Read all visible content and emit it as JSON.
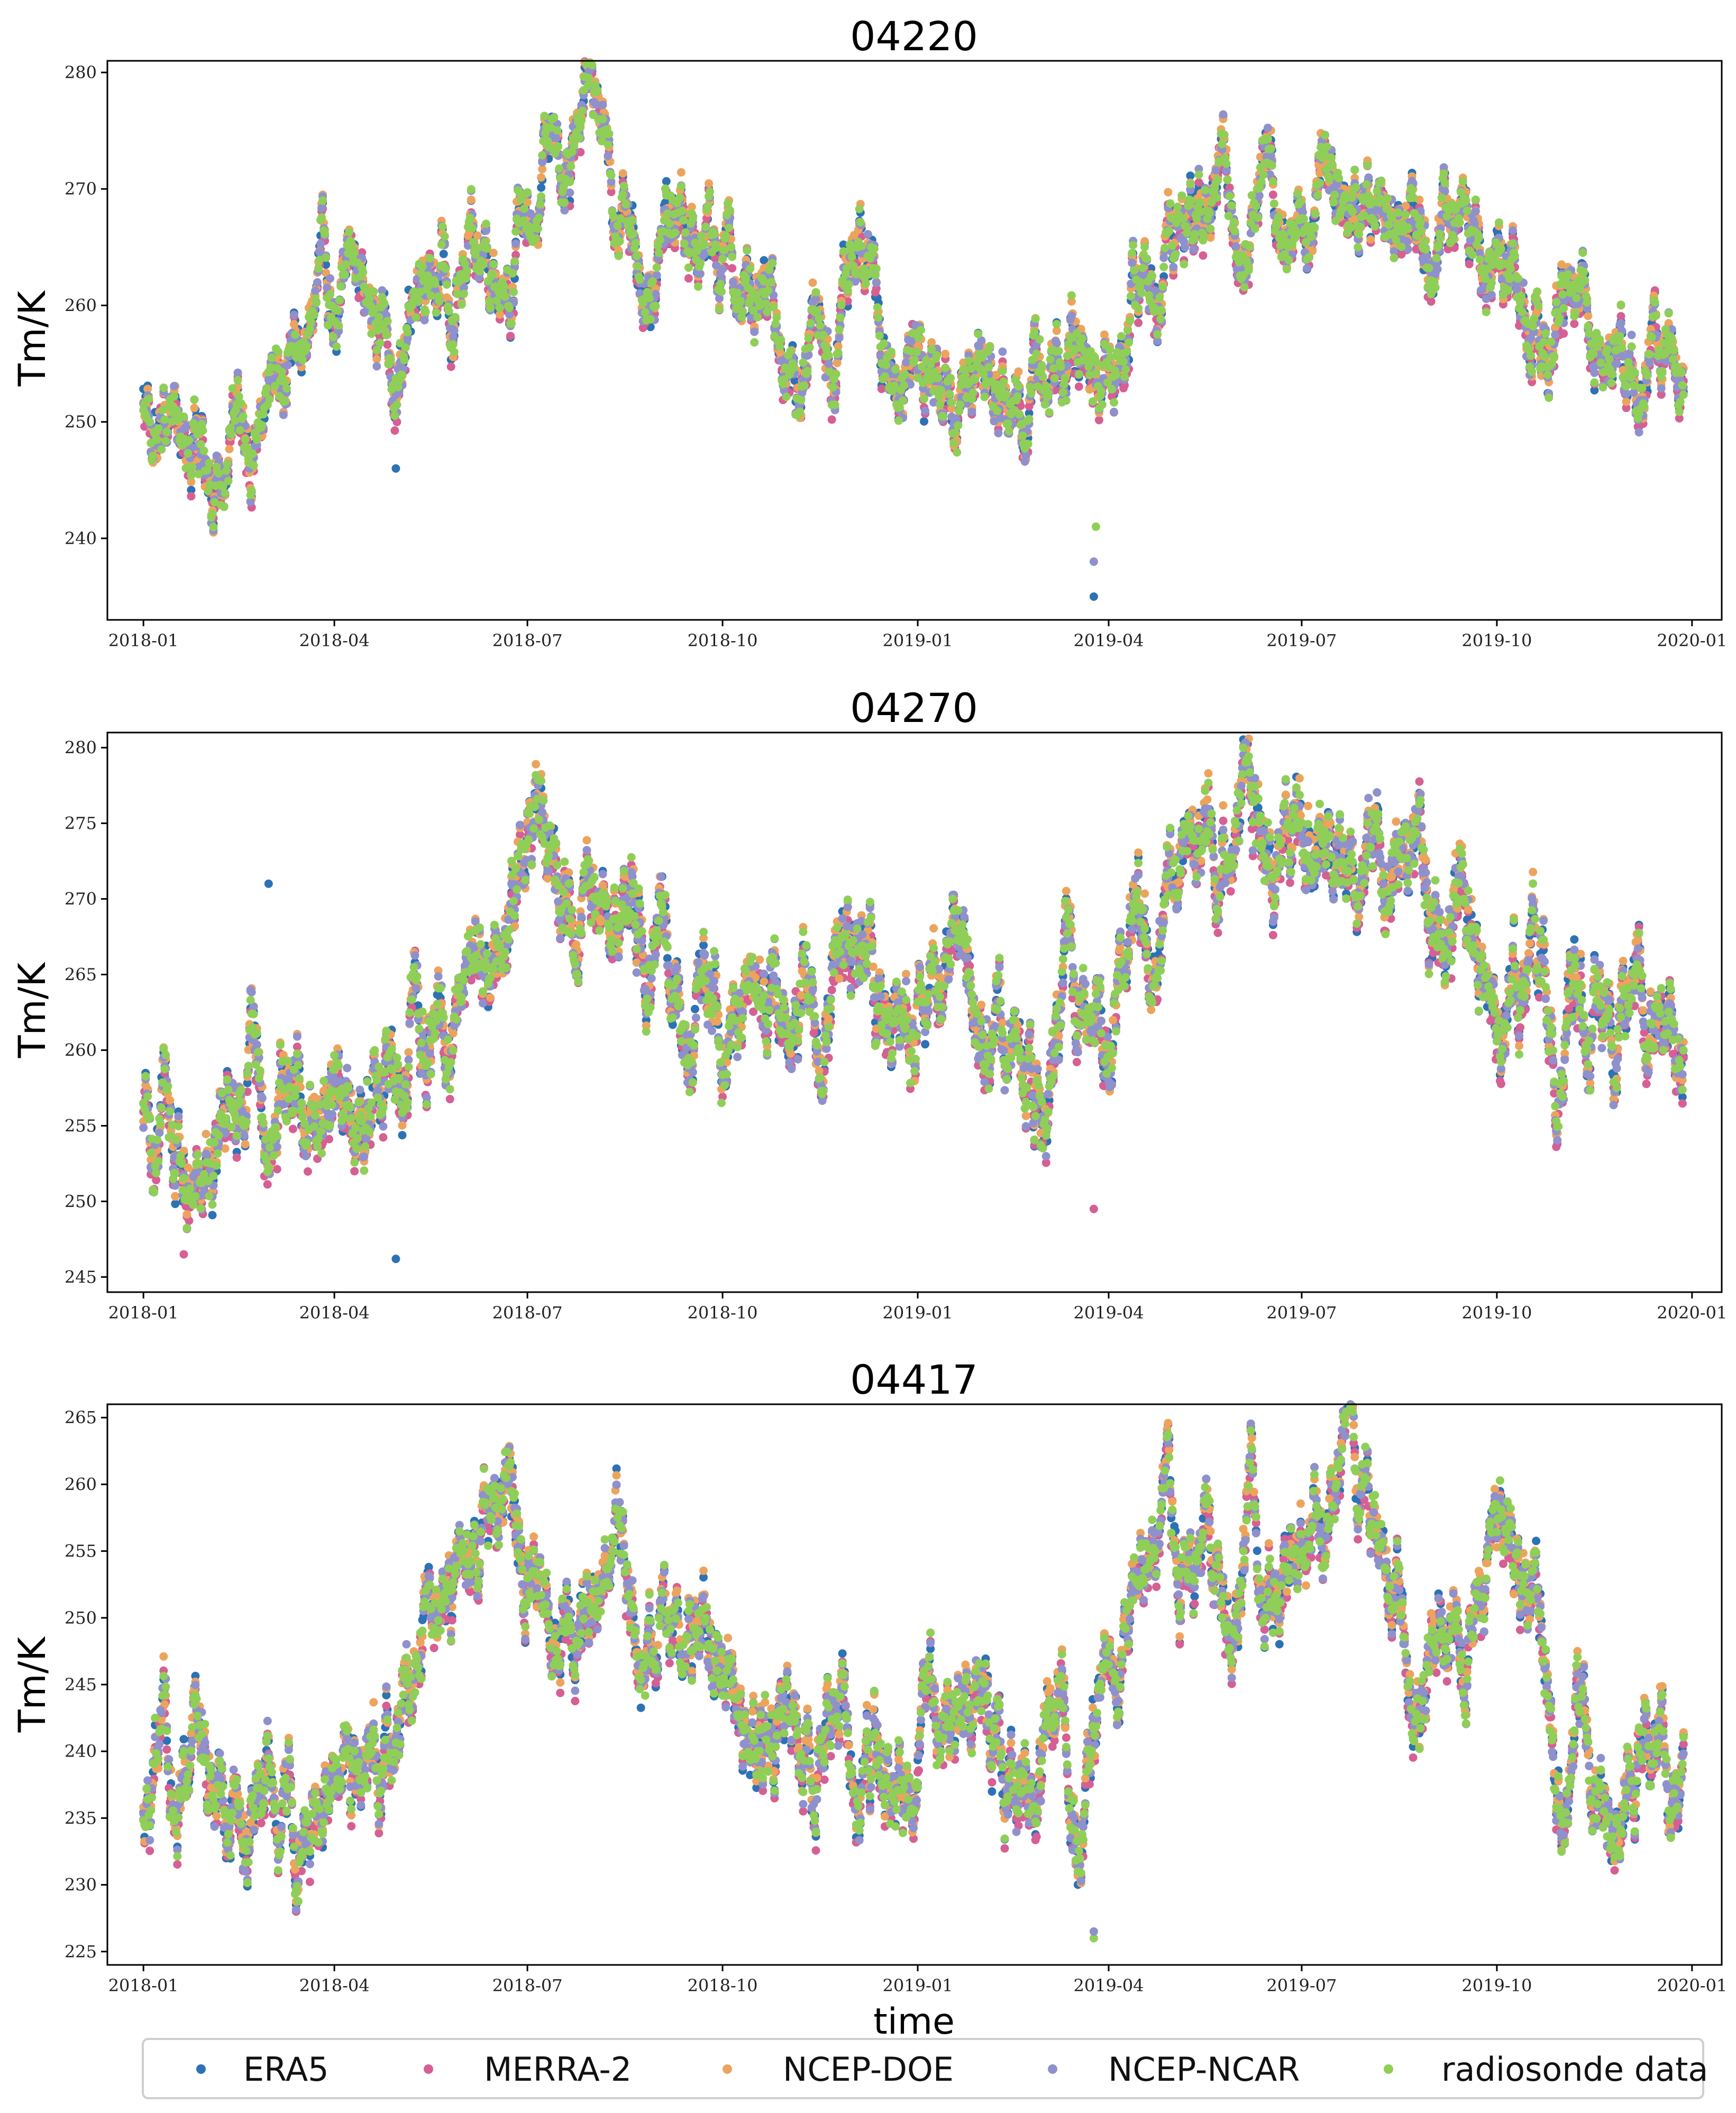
{
  "chart_data": [
    {
      "type": "scatter",
      "title": "04220",
      "ylabel": "Tm/K",
      "xlabel": "",
      "x_ticks": [
        "2018-01",
        "2018-04",
        "2018-07",
        "2018-10",
        "2019-01",
        "2019-04",
        "2019-07",
        "2019-10",
        "2020-01"
      ],
      "y_ticks": [
        240,
        250,
        260,
        270,
        280
      ],
      "ylim": [
        233,
        281
      ],
      "xlim": [
        "2017-12-15",
        "2020-01-15"
      ],
      "date_range": [
        "2018-01-01",
        "2019-12-28"
      ],
      "seasonal_curve": [
        [
          "2018-01-01",
          251
        ],
        [
          "2018-02-01",
          247
        ],
        [
          "2018-03-01",
          252
        ],
        [
          "2018-04-01",
          258
        ],
        [
          "2018-05-01",
          258
        ],
        [
          "2018-06-01",
          265
        ],
        [
          "2018-07-01",
          269
        ],
        [
          "2018-08-01",
          273
        ],
        [
          "2018-09-01",
          266
        ],
        [
          "2018-10-01",
          262
        ],
        [
          "2018-11-01",
          256
        ],
        [
          "2018-12-01",
          259
        ],
        [
          "2019-01-01",
          255
        ],
        [
          "2019-02-01",
          253
        ],
        [
          "2019-03-01",
          254
        ],
        [
          "2019-04-01",
          258
        ],
        [
          "2019-05-01",
          267
        ],
        [
          "2019-06-01",
          270
        ],
        [
          "2019-07-01",
          272
        ],
        [
          "2019-08-01",
          273
        ],
        [
          "2019-09-01",
          267
        ],
        [
          "2019-10-01",
          266
        ],
        [
          "2019-11-01",
          261
        ],
        [
          "2019-12-01",
          256
        ],
        [
          "2019-12-28",
          255
        ]
      ],
      "noise_amplitude": 3.2,
      "outliers": [
        {
          "series": "ERA5",
          "date": "2018-04-30",
          "value": 246
        },
        {
          "series": "radiosonde data",
          "date": "2019-03-26",
          "value": 241
        },
        {
          "series": "NCEP-NCAR",
          "date": "2019-03-25",
          "value": 238
        },
        {
          "series": "ERA5",
          "date": "2019-03-25",
          "value": 235
        }
      ]
    },
    {
      "type": "scatter",
      "title": "04270",
      "ylabel": "Tm/K",
      "xlabel": "",
      "x_ticks": [
        "2018-01",
        "2018-04",
        "2018-07",
        "2018-10",
        "2019-01",
        "2019-04",
        "2019-07",
        "2019-10",
        "2020-01"
      ],
      "y_ticks": [
        245,
        250,
        255,
        260,
        265,
        270,
        275,
        280
      ],
      "ylim": [
        244,
        281
      ],
      "xlim": [
        "2017-12-15",
        "2020-01-15"
      ],
      "date_range": [
        "2018-01-01",
        "2019-12-28"
      ],
      "seasonal_curve": [
        [
          "2018-01-01",
          258
        ],
        [
          "2018-02-01",
          255
        ],
        [
          "2018-03-01",
          258
        ],
        [
          "2018-04-01",
          262
        ],
        [
          "2018-05-01",
          262
        ],
        [
          "2018-06-01",
          266
        ],
        [
          "2018-07-01",
          272
        ],
        [
          "2018-08-01",
          273
        ],
        [
          "2018-09-01",
          268
        ],
        [
          "2018-10-01",
          265
        ],
        [
          "2018-11-01",
          263
        ],
        [
          "2018-12-01",
          263
        ],
        [
          "2019-01-01",
          260
        ],
        [
          "2019-02-01",
          258
        ],
        [
          "2019-03-01",
          259
        ],
        [
          "2019-04-01",
          263
        ],
        [
          "2019-05-01",
          268
        ],
        [
          "2019-06-01",
          273
        ],
        [
          "2019-07-01",
          274
        ],
        [
          "2019-08-01",
          272
        ],
        [
          "2019-09-01",
          270
        ],
        [
          "2019-10-01",
          267
        ],
        [
          "2019-11-01",
          264
        ],
        [
          "2019-12-01",
          261
        ],
        [
          "2019-12-28",
          259
        ]
      ],
      "noise_amplitude": 3.0,
      "outliers": [
        {
          "series": "ERA5",
          "date": "2018-04-30",
          "value": 246.2
        },
        {
          "series": "ERA5",
          "date": "2018-03-01",
          "value": 271
        },
        {
          "series": "MERRA-2",
          "date": "2018-01-20",
          "value": 246.5
        },
        {
          "series": "MERRA-2",
          "date": "2019-03-25",
          "value": 249.5
        }
      ]
    },
    {
      "type": "scatter",
      "title": "04417",
      "ylabel": "Tm/K",
      "xlabel": "time",
      "x_ticks": [
        "2018-01",
        "2018-04",
        "2018-07",
        "2018-10",
        "2019-01",
        "2019-04",
        "2019-07",
        "2019-10",
        "2020-01"
      ],
      "y_ticks": [
        225,
        230,
        235,
        240,
        245,
        250,
        255,
        260,
        265
      ],
      "ylim": [
        224,
        266
      ],
      "xlim": [
        "2017-12-15",
        "2020-01-15"
      ],
      "date_range": [
        "2018-01-01",
        "2019-12-28"
      ],
      "seasonal_curve": [
        [
          "2018-01-01",
          236
        ],
        [
          "2018-02-01",
          236
        ],
        [
          "2018-03-01",
          237
        ],
        [
          "2018-04-01",
          241
        ],
        [
          "2018-05-01",
          243
        ],
        [
          "2018-06-01",
          250
        ],
        [
          "2018-07-01",
          254
        ],
        [
          "2018-08-01",
          255
        ],
        [
          "2018-09-01",
          250
        ],
        [
          "2018-10-01",
          244
        ],
        [
          "2018-11-01",
          241
        ],
        [
          "2018-12-01",
          243
        ],
        [
          "2019-01-01",
          240
        ],
        [
          "2019-02-01",
          239
        ],
        [
          "2019-03-01",
          238
        ],
        [
          "2019-04-01",
          242
        ],
        [
          "2019-05-01",
          251
        ],
        [
          "2019-06-01",
          254
        ],
        [
          "2019-07-01",
          256
        ],
        [
          "2019-08-01",
          258
        ],
        [
          "2019-09-01",
          248
        ],
        [
          "2019-10-01",
          249
        ],
        [
          "2019-11-01",
          244
        ],
        [
          "2019-12-01",
          240
        ],
        [
          "2019-12-28",
          240
        ]
      ],
      "noise_amplitude": 3.4,
      "outliers": [
        {
          "series": "radiosonde data",
          "date": "2019-03-25",
          "value": 226
        },
        {
          "series": "NCEP-NCAR",
          "date": "2019-03-25",
          "value": 226.5
        }
      ]
    }
  ],
  "legend": {
    "placement": "bottom",
    "entries": [
      {
        "label": "ERA5",
        "color": "#2c72b5"
      },
      {
        "label": "MERRA-2",
        "color": "#d65f94"
      },
      {
        "label": "NCEP-DOE",
        "color": "#eca45d"
      },
      {
        "label": "NCEP-NCAR",
        "color": "#8f91cc"
      },
      {
        "label": "radiosonde data",
        "color": "#8fcf57"
      }
    ]
  }
}
